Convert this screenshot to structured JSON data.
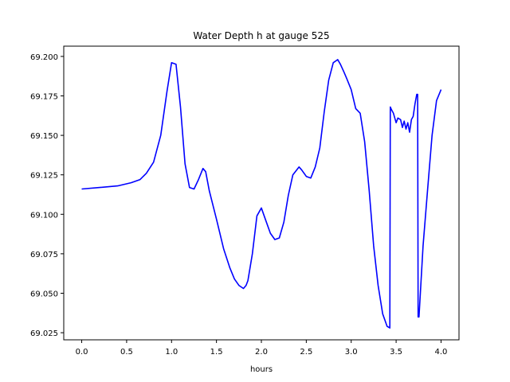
{
  "chart_data": {
    "type": "line",
    "title": "Water Depth h at gauge 525",
    "xlabel": "hours",
    "ylabel": "",
    "xlim": [
      -0.2,
      4.2
    ],
    "ylim": [
      69.0205,
      69.2065
    ],
    "xticks": [
      0.0,
      0.5,
      1.0,
      1.5,
      2.0,
      2.5,
      3.0,
      3.5,
      4.0
    ],
    "xtick_labels": [
      "0.0",
      "0.5",
      "1.0",
      "1.5",
      "2.0",
      "2.5",
      "3.0",
      "3.5",
      "4.0"
    ],
    "yticks": [
      69.025,
      69.05,
      69.075,
      69.1,
      69.125,
      69.15,
      69.175,
      69.2
    ],
    "ytick_labels": [
      "69.025",
      "69.050",
      "69.075",
      "69.100",
      "69.125",
      "69.150",
      "69.175",
      "69.200"
    ],
    "grid": false,
    "series": [
      {
        "color": "#0000ff",
        "x": [
          0.0,
          0.2,
          0.4,
          0.55,
          0.65,
          0.72,
          0.8,
          0.88,
          0.95,
          1.0,
          1.05,
          1.1,
          1.15,
          1.2,
          1.25,
          1.3,
          1.35,
          1.38,
          1.42,
          1.5,
          1.58,
          1.65,
          1.7,
          1.75,
          1.8,
          1.83,
          1.85,
          1.9,
          1.95,
          2.0,
          2.05,
          2.1,
          2.15,
          2.2,
          2.25,
          2.3,
          2.35,
          2.42,
          2.45,
          2.5,
          2.55,
          2.6,
          2.65,
          2.7,
          2.75,
          2.8,
          2.85,
          2.88,
          2.92,
          2.95,
          3.0,
          3.05,
          3.1,
          3.15,
          3.2,
          3.25,
          3.3,
          3.35,
          3.4,
          3.43,
          3.435,
          3.45,
          3.47,
          3.5,
          3.52,
          3.55,
          3.57,
          3.59,
          3.61,
          3.63,
          3.65,
          3.67,
          3.69,
          3.71,
          3.73,
          3.74,
          3.745,
          3.755,
          3.8,
          3.85,
          3.9,
          3.95,
          4.0
        ],
        "values": [
          69.116,
          69.117,
          69.118,
          69.12,
          69.122,
          69.126,
          69.133,
          69.15,
          69.178,
          69.196,
          69.195,
          69.168,
          69.132,
          69.117,
          69.116,
          69.122,
          69.129,
          69.127,
          69.115,
          69.097,
          69.078,
          69.066,
          69.059,
          69.055,
          69.053,
          69.055,
          69.058,
          69.075,
          69.099,
          69.104,
          69.096,
          69.088,
          69.084,
          69.085,
          69.095,
          69.112,
          69.125,
          69.13,
          69.128,
          69.124,
          69.123,
          69.13,
          69.142,
          69.165,
          69.185,
          69.196,
          69.198,
          69.195,
          69.19,
          69.186,
          69.179,
          69.167,
          69.164,
          69.146,
          69.115,
          69.08,
          69.055,
          69.037,
          69.029,
          69.028,
          69.168,
          69.166,
          69.164,
          69.158,
          69.161,
          69.16,
          69.155,
          69.159,
          69.154,
          69.158,
          69.152,
          69.16,
          69.162,
          69.17,
          69.176,
          69.176,
          69.035,
          69.035,
          69.08,
          69.115,
          69.15,
          69.172,
          69.179
        ]
      }
    ]
  }
}
